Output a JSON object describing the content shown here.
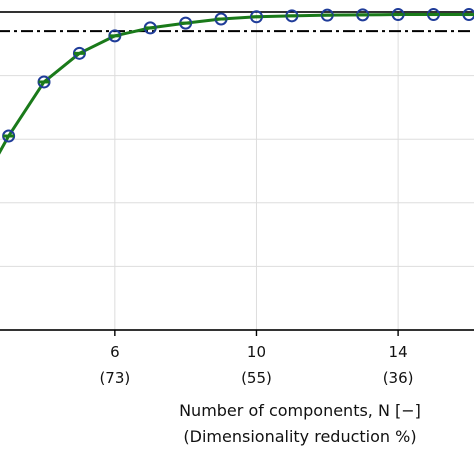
{
  "chart_data": {
    "type": "line",
    "xlabel": "Number of components, N [−]",
    "xlabel_secondary": "(Dimensionality reduction %)",
    "x_ticks": [
      {
        "value": 6,
        "label": "6",
        "sublabel": "(73)"
      },
      {
        "value": 10,
        "label": "10",
        "sublabel": "(55)"
      },
      {
        "value": 14,
        "label": "14",
        "sublabel": "(36)"
      }
    ],
    "xlim": [
      2.7,
      16.2
    ],
    "ylim": [
      0,
      1
    ],
    "grid": true,
    "reference_line": {
      "y": 0.94,
      "style": "dash-dot",
      "color": "#000000"
    },
    "series": [
      {
        "style": "line-with-markers",
        "line_color": "#1a7a1a",
        "marker_edge_color": "#1f3c99",
        "x": [
          3,
          4,
          5,
          6,
          7,
          8,
          9,
          10,
          11,
          12,
          13,
          14,
          15,
          16
        ],
        "y": [
          0.61,
          0.78,
          0.87,
          0.925,
          0.95,
          0.965,
          0.978,
          0.985,
          0.988,
          0.99,
          0.991,
          0.992,
          0.992,
          0.992
        ]
      }
    ]
  }
}
